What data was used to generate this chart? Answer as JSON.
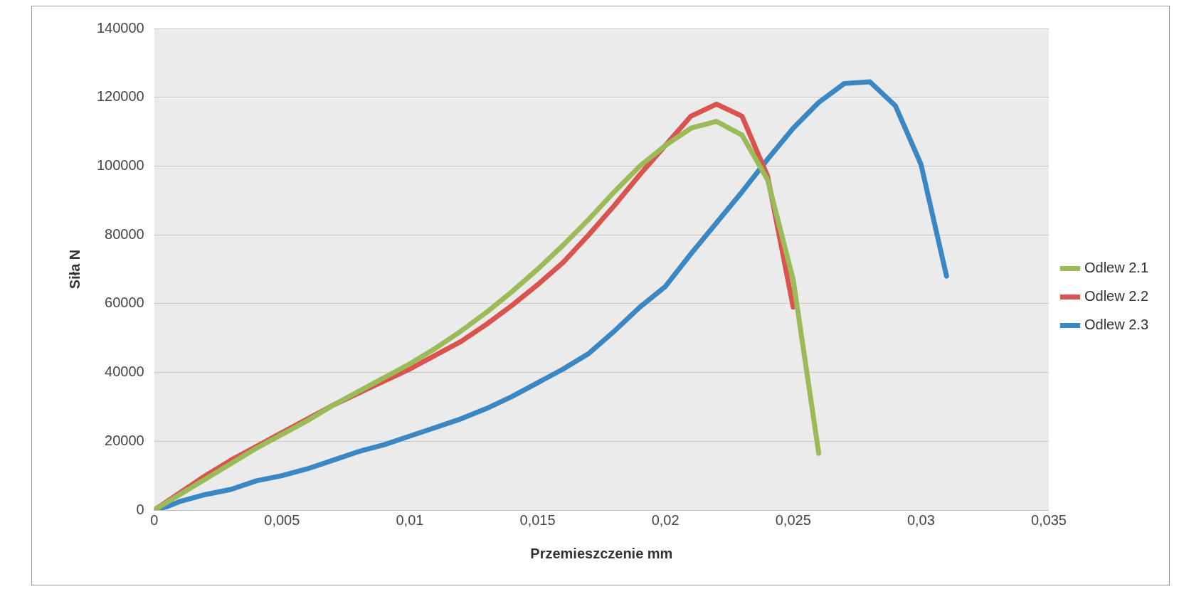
{
  "chart_data": {
    "type": "line",
    "xlabel": "Przemieszczenie mm",
    "ylabel": "Siła N",
    "xlim": [
      0,
      0.035
    ],
    "xticks": [
      0,
      {
        "value": 0.005,
        "label": "0,005"
      },
      {
        "value": 0.01,
        "label": "0,01"
      },
      {
        "value": 0.015,
        "label": "0,015"
      },
      {
        "value": 0.02,
        "label": "0,02"
      },
      {
        "value": 0.025,
        "label": "0,025"
      },
      {
        "value": 0.03,
        "label": "0,03"
      },
      {
        "value": 0.035,
        "label": "0,035"
      }
    ],
    "ylim": [
      0,
      140000
    ],
    "yticks": [
      0,
      20000,
      40000,
      60000,
      80000,
      100000,
      120000,
      140000
    ],
    "grid": "y",
    "legend": "right",
    "marker": "none",
    "line_style": "solid",
    "series": [
      {
        "name": "Odlew 2.1",
        "color": "#9bbb59",
        "x": [
          0,
          0.001,
          0.002,
          0.003,
          0.004,
          0.005,
          0.006,
          0.007,
          0.008,
          0.009,
          0.01,
          0.011,
          0.012,
          0.013,
          0.014,
          0.015,
          0.016,
          0.017,
          0.018,
          0.019,
          0.02,
          0.021,
          0.022,
          0.023,
          0.024,
          0.025,
          0.026
        ],
        "values": [
          0,
          4500,
          9000,
          13500,
          18000,
          22000,
          26000,
          30500,
          34500,
          38500,
          42500,
          47000,
          52000,
          57500,
          63500,
          70000,
          77000,
          84500,
          92500,
          100000,
          106000,
          111000,
          113000,
          109000,
          96000,
          67000,
          16500
        ]
      },
      {
        "name": "Odlew 2.2",
        "color": "#d9534f",
        "x": [
          0,
          0.001,
          0.002,
          0.003,
          0.004,
          0.005,
          0.006,
          0.007,
          0.008,
          0.009,
          0.01,
          0.011,
          0.012,
          0.013,
          0.014,
          0.015,
          0.016,
          0.017,
          0.018,
          0.019,
          0.02,
          0.021,
          0.022,
          0.023,
          0.024,
          0.025
        ],
        "values": [
          0,
          5000,
          10000,
          14500,
          18500,
          22500,
          26500,
          30500,
          34000,
          37500,
          41000,
          45000,
          49000,
          54000,
          59500,
          65500,
          72000,
          80000,
          88500,
          97500,
          106000,
          114500,
          118000,
          114500,
          97000,
          59000
        ]
      },
      {
        "name": "Odlew 2.3",
        "color": "#3a87c4",
        "x": [
          0,
          0.0005,
          0.001,
          0.002,
          0.003,
          0.004,
          0.005,
          0.006,
          0.007,
          0.008,
          0.009,
          0.01,
          0.011,
          0.012,
          0.013,
          0.014,
          0.015,
          0.016,
          0.017,
          0.018,
          0.019,
          0.02,
          0.021,
          0.022,
          0.023,
          0.024,
          0.025,
          0.026,
          0.027,
          0.028,
          0.029,
          0.03,
          0.031
        ],
        "values": [
          0,
          1000,
          2500,
          4500,
          6000,
          8500,
          10000,
          12000,
          14500,
          17000,
          19000,
          21500,
          24000,
          26500,
          29500,
          33000,
          37000,
          41000,
          45500,
          52000,
          59000,
          65000,
          74500,
          83500,
          92500,
          102000,
          111000,
          118500,
          124000,
          124500,
          117500,
          100500,
          68000
        ]
      }
    ]
  }
}
